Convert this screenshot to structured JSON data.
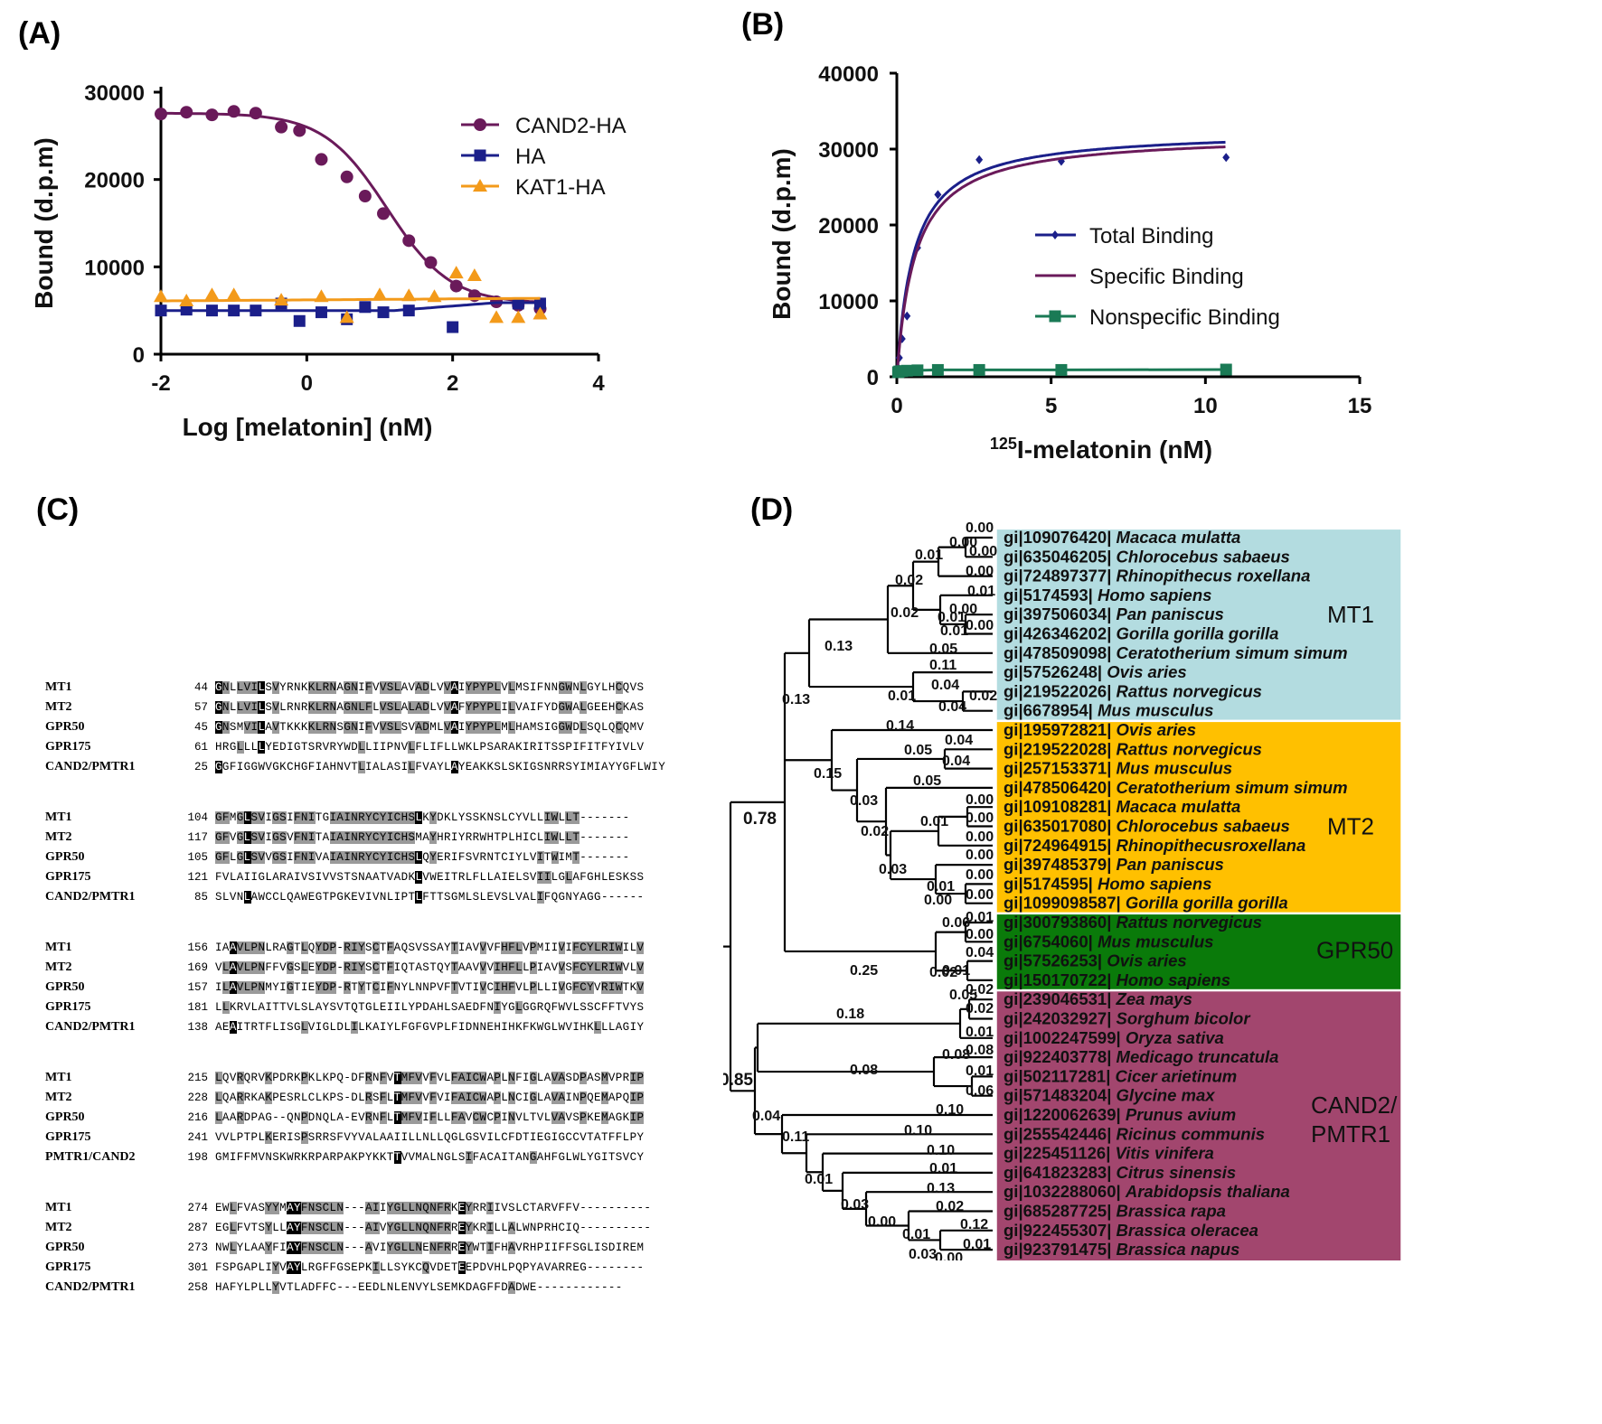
{
  "panels": {
    "a": "(A)",
    "b": "(B)",
    "c": "(C)",
    "d": "(D)"
  },
  "chart_data": [
    {
      "type": "line",
      "xlabel": "Log [melatonin] (nM)",
      "ylabel": "Bound (d.p.m)",
      "xlim": [
        -2,
        4
      ],
      "ylim": [
        0,
        30000
      ],
      "xticks": [
        "-2",
        "0",
        "2",
        "4"
      ],
      "yticks": [
        "0",
        "10000",
        "20000",
        "30000"
      ],
      "legend_position": "top-right",
      "series": [
        {
          "name": "CAND2-HA",
          "color": "#6a1a5a",
          "marker": "circle",
          "x": [
            -2,
            -1.65,
            -1.3,
            -1,
            -0.7,
            -0.35,
            -0.1,
            0.2,
            0.55,
            0.8,
            1.05,
            1.4,
            1.7,
            2.05,
            2.3,
            2.6,
            2.9,
            3.2
          ],
          "y": [
            27500,
            27700,
            27400,
            27800,
            27600,
            26000,
            25600,
            22300,
            20300,
            18100,
            16100,
            13000,
            10500,
            7800,
            6700,
            6000,
            5600,
            5200
          ],
          "curve": {
            "top": 27600,
            "bottom": 5800,
            "logEC50": 1.1,
            "hill": 1
          }
        },
        {
          "name": "HA",
          "color": "#1b1f8a",
          "marker": "square",
          "x": [
            -2,
            -1.65,
            -1.3,
            -1,
            -0.7,
            -0.35,
            -0.1,
            0.2,
            0.55,
            0.8,
            1.05,
            1.4,
            2.0,
            2.9,
            3.2
          ],
          "y": [
            5000,
            5100,
            5000,
            5000,
            5000,
            5800,
            3800,
            4800,
            4000,
            5400,
            4800,
            5000,
            3100,
            5800,
            5800
          ],
          "curve": {
            "start": 5000,
            "end": 5900
          }
        },
        {
          "name": "KAT1-HA",
          "color": "#f39a1a",
          "marker": "triangle",
          "x": [
            -2,
            -1.65,
            -1.3,
            -1,
            -0.35,
            0.2,
            0.55,
            1.0,
            1.4,
            1.75,
            2.05,
            2.3,
            2.6,
            2.9,
            3.2
          ],
          "y": [
            6600,
            6100,
            6800,
            6800,
            6200,
            6600,
            4200,
            6800,
            6700,
            6600,
            9300,
            9000,
            4200,
            4200,
            4600
          ],
          "curve": {
            "start": 6100,
            "end": 6400
          }
        }
      ]
    },
    {
      "type": "line",
      "xlabel_sup": "125",
      "xlabel": "I-melatonin (nM)",
      "ylabel": "Bound (d.p.m)",
      "xlim": [
        0,
        15
      ],
      "ylim": [
        0,
        40000
      ],
      "xticks": [
        "0",
        "5",
        "10",
        "15"
      ],
      "yticks": [
        "0",
        "10000",
        "20000",
        "30000",
        "40000"
      ],
      "legend_position": "center-right",
      "series": [
        {
          "name": "Total Binding",
          "color": "#1b1f8a",
          "marker": "diamond",
          "x": [
            0.04,
            0.08,
            0.17,
            0.33,
            0.67,
            1.33,
            2.67,
            5.33,
            10.67
          ],
          "y": [
            1200,
            2500,
            5000,
            8000,
            17000,
            24000,
            28600,
            28400,
            28900
          ],
          "curve": {
            "bmax": 32500,
            "kd": 0.55
          }
        },
        {
          "name": "Specific Binding",
          "color": "#6a1a5a",
          "marker": "none",
          "x": [
            0.04,
            0.08,
            0.17,
            0.33,
            0.67,
            1.33,
            2.67,
            5.33,
            10.67
          ],
          "y": [
            1000,
            2300,
            4500,
            7500,
            16000,
            23000,
            27500,
            27600,
            28000
          ],
          "curve": {
            "bmax": 32000,
            "kd": 0.6
          }
        },
        {
          "name": "Nonspecific Binding",
          "color": "#1a7a55",
          "marker": "square",
          "x": [
            0.04,
            0.08,
            0.17,
            0.33,
            0.67,
            1.33,
            2.67,
            5.33,
            10.67
          ],
          "y": [
            600,
            700,
            750,
            800,
            850,
            900,
            900,
            900,
            950
          ]
        }
      ]
    }
  ],
  "alignment": {
    "blocks": [
      {
        "rows": [
          {
            "name": "MT1",
            "start": "44",
            "seq": "GNLLVILSVYRNKKLRNAGNIFVVSLAVADLVVAIYPYPLVLMSIFNNGWNLGYLHCQVS"
          },
          {
            "name": "MT2",
            "start": "57",
            "seq": "GNLLVILSVLRNRKLRNAGNLFLVSLALADLVVAFYPYPLILVAIFYDGWALGEEHCKAS"
          },
          {
            "name": "GPR50",
            "start": "45",
            "seq": "GNSMVILAVTKKKKLRNSGNIFVVSLSVADMLVAIYPYPLMLHAMSIGGWDLSQLQCQMV"
          },
          {
            "name": "GPR175",
            "start": "61",
            "seq": "HRGLLLLYEDIGTSRVRYWDLLIIPNVLFLIFLLWKLPSARAKIRITSSPIFITFYIVLV"
          },
          {
            "name": "CAND2/PMTR1",
            "start": "25",
            "seq": "GGFIGGWVGKCHGFIAHNVTLIALASILFVAYLAYEAKKSLSKIGSNRRSYIMIAYYGFLWIY"
          }
        ]
      },
      {
        "rows": [
          {
            "name": "MT1",
            "start": "104",
            "seq": "GFMGLSVIGSIFNITGIAINRYCYICHSLKYDKLYSSKNSLCYVLLIWLLT-------"
          },
          {
            "name": "MT2",
            "start": "117",
            "seq": "GFVGLSVIGSVFNITAIAINRYCYICHSMAYHRIYRRWHTPLHICLIWLLT-------"
          },
          {
            "name": "GPR50",
            "start": "105",
            "seq": "GFLGLSVVGSIFNIVAIAINRYCYICHSLQYERIFSVRNTCIYLVITWIMT-------"
          },
          {
            "name": "GPR175",
            "start": "121",
            "seq": "FVLAIIGLARAIVSIVVSTSNAATVADKLVWEITRLFLLAIELSVIILGLAFGHLESKSS"
          },
          {
            "name": "CAND2/PMTR1",
            "start": "85",
            "seq": "SLVNLAWCCLQAWEGTPGKEVIVNLIPTLFTTSGMLSLEVSLVALIFQGNYAGG------"
          }
        ]
      },
      {
        "rows": [
          {
            "name": "MT1",
            "start": "156",
            "seq": "IAAVLPNLRAGTLQYDP-RIYSCTFAQSVSSAYTIAVVVFHFLVPMIIVIFCYLRIWILV"
          },
          {
            "name": "MT2",
            "start": "169",
            "seq": "VLAVLPNFFVGSLEYDP-RIYSCTFIQTASTQYTAAVVVIHFLLPIAVVSFCYLRIWVLV"
          },
          {
            "name": "GPR50",
            "start": "157",
            "seq": "ILAVLPNMYIGTIEYDP-RTYTCIFNYLNNPVFTVTIVCIHFVLPLLIVGFCYVRIWTKV"
          },
          {
            "name": "GPR175",
            "start": "181",
            "seq": "LLKRVLAITTVLSLAYSVTQTGLEIILYPDAHLSAEDFNIYGLGGRQFWVLSSCFFTVYS"
          },
          {
            "name": "CAND2/PMTR1",
            "start": "138",
            "seq": "AEAITRTFLISGLVIGLDLILKAIYLFGFGVPLFIDNNEHIHKFKWGLWVIHKLLLAGIY"
          }
        ]
      },
      {
        "rows": [
          {
            "name": "MT1",
            "start": "215",
            "seq": "LQVRQRVKPDRKPKLKPQ-DFRNFVTMFVVFVLFAICWAPLNFIGLAVASDPASMVPRIP"
          },
          {
            "name": "MT2",
            "start": "228",
            "seq": "LQARRKAKPESRLCLKPS-DLRSFLTMFVVFVIFAICWAPLNCIGLAVAINPQEMAPQIP"
          },
          {
            "name": "GPR50",
            "start": "216",
            "seq": "LAARDPAG--QNPDNQLA-EVRNFLTMFVIFLLFAVCWCPINVLTVLVAVSPKEMAGKIP"
          },
          {
            "name": "GPR175",
            "start": "241",
            "seq": "VVLPTPLKERISPSRRSFVYVALAAIILLNLLQGLGSVILCFDTIEGIGCCVTATFFLPY"
          },
          {
            "name": "PMTR1/CAND2",
            "start": "198",
            "seq": "GMIFFMVNSKWRKRPARPAKPYKKTTVVMALNGLSIFACAITANGAHFGLWLYGITSVCY"
          }
        ]
      },
      {
        "rows": [
          {
            "name": "MT1",
            "start": "274",
            "seq": "EWLFVASYYMAYFNSCLN---AIIYGLLNQNFRKEYRRIIVSLCTARVFFV----------"
          },
          {
            "name": "MT2",
            "start": "287",
            "seq": "EGLFVTSYLLAYFNSCLN---AIVYGLLNQNFRREYKRILLALWNPRHCIQ----------"
          },
          {
            "name": "GPR50",
            "start": "273",
            "seq": "NWLYLAAYFIAYFNSCLN---AVIYGLLNENFRREYWTIFHAVRHPIIFFSGLISDIREM"
          },
          {
            "name": "GPR175",
            "start": "301",
            "seq": "FSPGAPLIYVAYLRGFFGSEPKILLSYKCQVDETEEPDVHLPQPYAVARREG--------"
          },
          {
            "name": "CAND2/PMTR1",
            "start": "258",
            "seq": "HAFYLPLLYVTLADFFC---EEDLNLENVYLSEMKDAGFFDADWE------------"
          }
        ]
      }
    ]
  },
  "tree": {
    "groups": [
      {
        "label": "MT1",
        "color": "#b3dce0"
      },
      {
        "label": "MT2",
        "color": "#ffc000"
      },
      {
        "label": "GPR50",
        "color": "#0a7a0a"
      },
      {
        "label": "CAND2/\nPMTR1",
        "label1": "CAND2/",
        "label2": "PMTR1",
        "color": "#a2466e"
      }
    ],
    "leaves": [
      {
        "id": "gi|109076420|",
        "sp": "Macaca mulatta"
      },
      {
        "id": "gi|635046205|",
        "sp": "Chlorocebus sabaeus"
      },
      {
        "id": "gi|724897377|",
        "sp": "Rhinopithecus roxellana"
      },
      {
        "id": "gi|5174593|",
        "sp": "Homo sapiens"
      },
      {
        "id": "gi|397506034|",
        "sp": "Pan paniscus"
      },
      {
        "id": "gi|426346202|",
        "sp": "Gorilla gorilla gorilla"
      },
      {
        "id": "gi|478509098|",
        "sp": "Ceratotherium simum simum"
      },
      {
        "id": "gi|57526248|",
        "sp": "Ovis aries"
      },
      {
        "id": "gi|219522026|",
        "sp": "Rattus norvegicus"
      },
      {
        "id": "gi|6678954|",
        "sp": "Mus musculus"
      },
      {
        "id": "gi|195972821|",
        "sp": "Ovis aries"
      },
      {
        "id": "gi|219522028|",
        "sp": "Rattus norvegicus"
      },
      {
        "id": "gi|257153371|",
        "sp": "Mus musculus"
      },
      {
        "id": "gi|478506420|",
        "sp": "Ceratotherium simum simum"
      },
      {
        "id": "gi|109108281|",
        "sp": "Macaca mulatta"
      },
      {
        "id": "gi|635017080|",
        "sp": "Chlorocebus sabaeus"
      },
      {
        "id": "gi|724964915|",
        "sp": "Rhinopithecusroxellana"
      },
      {
        "id": "gi|397485379|",
        "sp": "Pan paniscus"
      },
      {
        "id": "gi|5174595|",
        "sp": "Homo sapiens"
      },
      {
        "id": "gi|1099098587|",
        "sp": "Gorilla gorilla gorilla"
      },
      {
        "id": "gi|300793860|",
        "sp": "Rattus norvegicus"
      },
      {
        "id": "gi|6754060|",
        "sp": "Mus musculus"
      },
      {
        "id": "gi|57526253|",
        "sp": "Ovis aries"
      },
      {
        "id": "gi|150170722|",
        "sp": "Homo sapiens"
      },
      {
        "id": "gi|239046531|",
        "sp": "Zea mays"
      },
      {
        "id": "gi|242032927|",
        "sp": "Sorghum bicolor"
      },
      {
        "id": "gi|1002247599|",
        "sp": "Oryza sativa"
      },
      {
        "id": "gi|922403778|",
        "sp": "Medicago truncatula"
      },
      {
        "id": "gi|502117281|",
        "sp": "Cicer arietinum"
      },
      {
        "id": "gi|571483204|",
        "sp": "Glycine max"
      },
      {
        "id": "gi|1220062639|",
        "sp": "Prunus avium"
      },
      {
        "id": "gi|255542446|",
        "sp": "Ricinus communis"
      },
      {
        "id": "gi|225451126|",
        "sp": "Vitis vinifera"
      },
      {
        "id": "gi|641823283|",
        "sp": "Citrus sinensis"
      },
      {
        "id": "gi|1032288060|",
        "sp": "Arabidopsis thaliana"
      },
      {
        "id": "gi|685287725|",
        "sp": "Brassica rapa"
      },
      {
        "id": "gi|922455307|",
        "sp": "Brassica oleracea"
      },
      {
        "id": "gi|923791475|",
        "sp": "Brassica napus"
      }
    ],
    "branch_labels": [
      "0.00",
      "0.00",
      "0.00",
      "0.01",
      "0.00",
      "0.02",
      "0.01",
      "0.01",
      "0.00",
      "0.00",
      "0.01",
      "0.05",
      "0.02",
      "0.13",
      "0.11",
      "0.04",
      "0.01",
      "0.02",
      "0.04",
      "0.13",
      "0.14",
      "0.04",
      "0.05",
      "0.04",
      "0.15",
      "0.05",
      "0.00",
      "0.03",
      "0.00",
      "0.01",
      "0.00",
      "0.02",
      "0.00",
      "0.03",
      "0.00",
      "0.01",
      "0.00",
      "0.00",
      "0.78",
      "0.06",
      "0.01",
      "0.00",
      "0.04",
      "0.25",
      "0.01",
      "0.02",
      "0.02",
      "0.05",
      "0.02",
      "0.18",
      "0.01",
      "0.08",
      "0.08",
      "0.01",
      "0.06",
      "0.08",
      "0.85",
      "0.10",
      "0.10",
      "0.10",
      "0.04",
      "0.11",
      "0.01",
      "0.13",
      "0.01",
      "0.03",
      "0.02",
      "0.00",
      "0.12",
      "0.01",
      "0.03",
      "0.01",
      "0.00"
    ]
  }
}
